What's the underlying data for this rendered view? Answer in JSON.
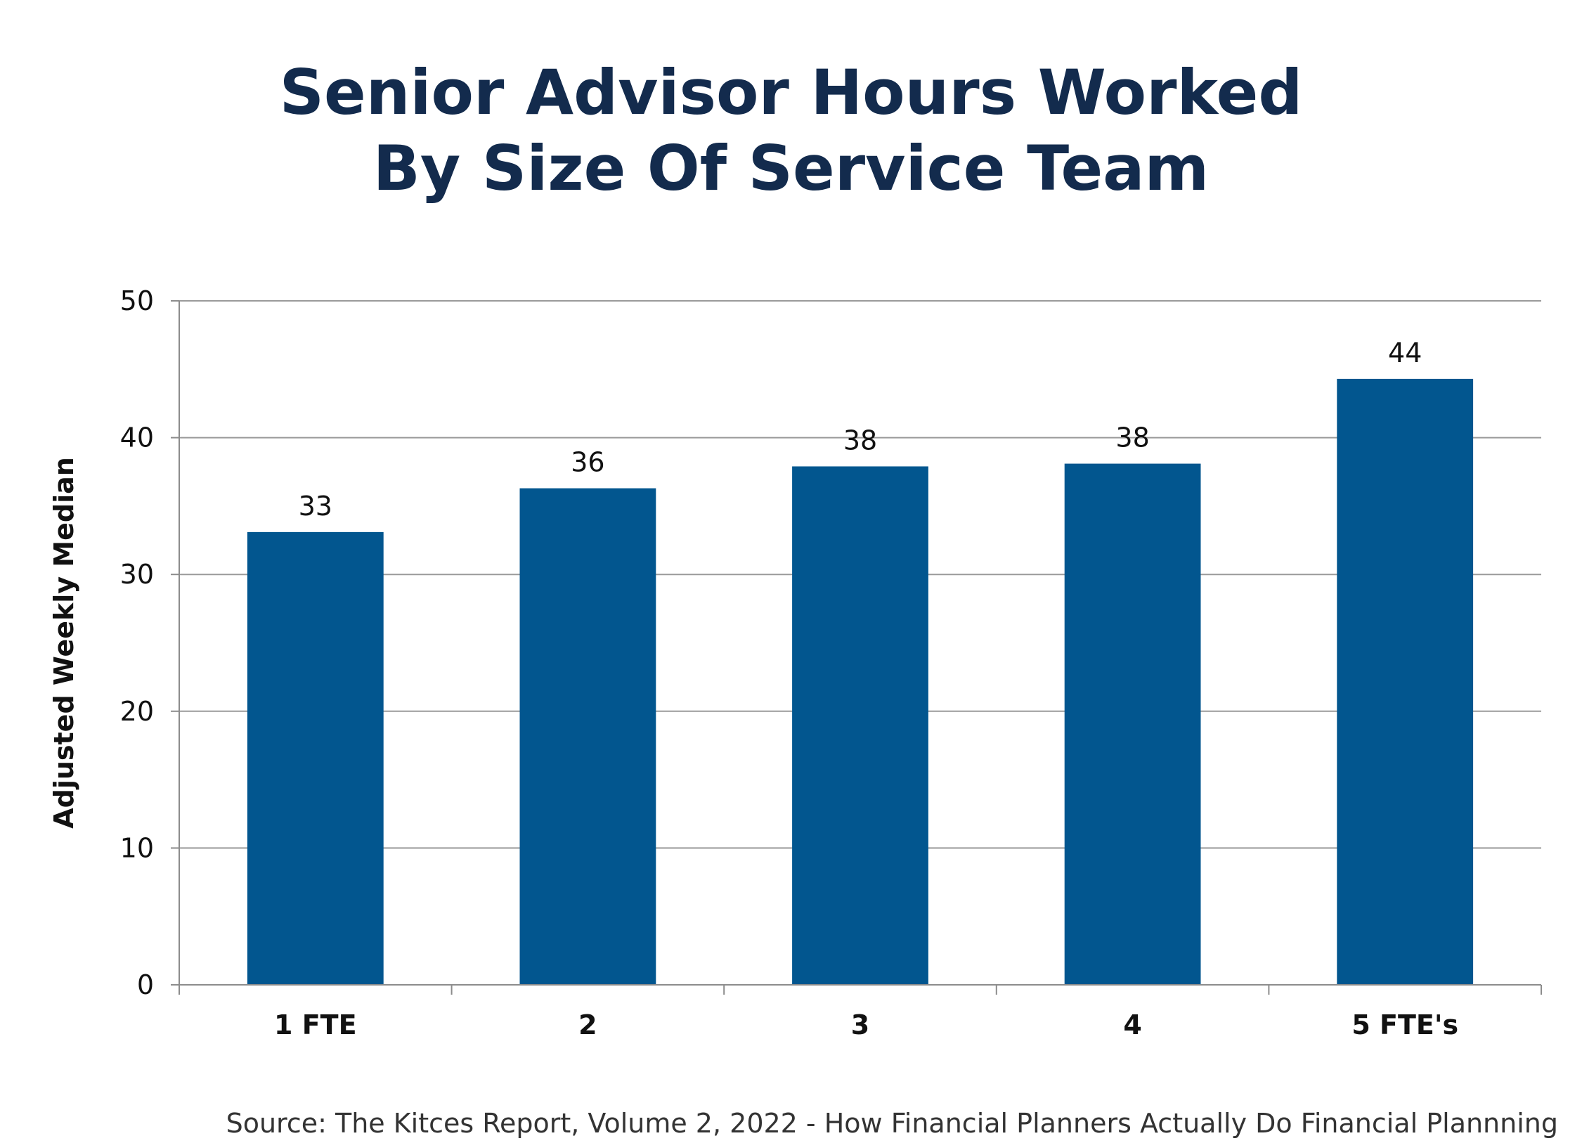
{
  "chart_data": {
    "type": "bar",
    "title_lines": [
      "Senior Advisor Hours Worked",
      "By Size Of Service Team"
    ],
    "categories": [
      "1 FTE",
      "2",
      "3",
      "4",
      "5 FTE's"
    ],
    "values": [
      33.1,
      36.3,
      37.9,
      38.1,
      44.3
    ],
    "data_labels": [
      "33",
      "36",
      "38",
      "38",
      "44"
    ],
    "ylabel": "Adjusted Weekly Median",
    "xlabel": "",
    "ylim": [
      0,
      50
    ],
    "yticks": [
      0,
      10,
      20,
      30,
      40,
      50
    ],
    "grid": true,
    "bar_color": "#02568f",
    "source": "Source: The Kitces Report, Volume 2, 2022 - How Financial Planners Actually Do Financial Plannning"
  },
  "colors": {
    "title": "#132b4d",
    "grid": "#9a9a9a",
    "axis": "#8c8c8c",
    "text": "#111111"
  }
}
